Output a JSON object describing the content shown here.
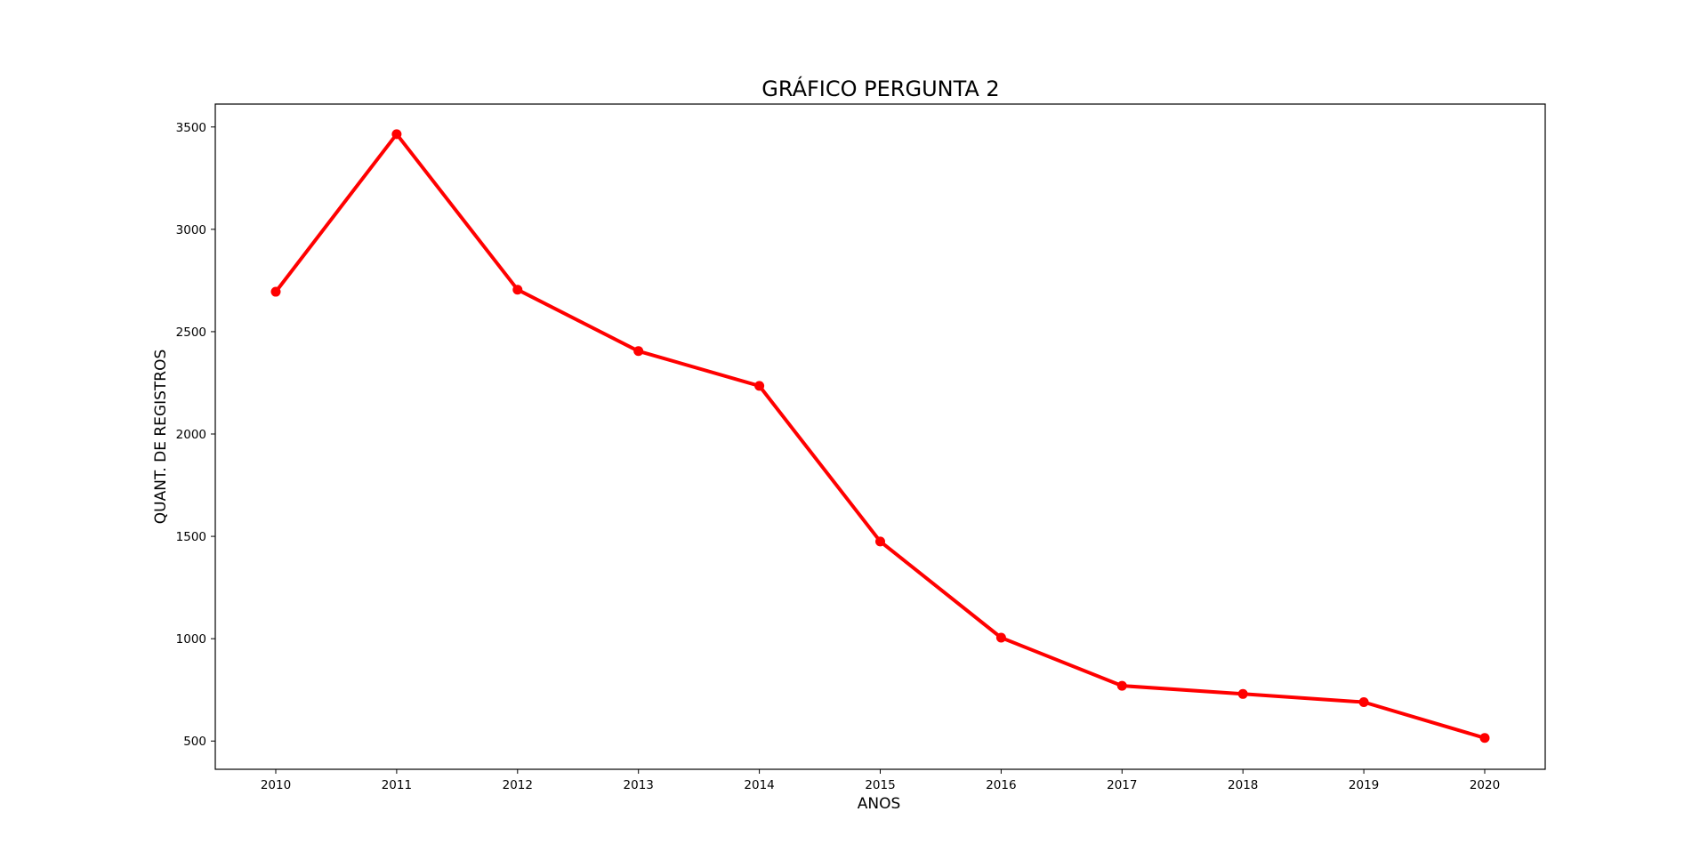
{
  "chart_data": {
    "type": "line",
    "title": "GRÁFICO PERGUNTA 2",
    "xlabel": "ANOS",
    "ylabel": "QUANT. DE REGISTROS",
    "x": [
      "2010",
      "2011",
      "2012",
      "2013",
      "2014",
      "2015",
      "2016",
      "2017",
      "2018",
      "2019",
      "2020"
    ],
    "series": [
      {
        "values": [
          2695,
          3465,
          2705,
          2405,
          2235,
          1475,
          1005,
          770,
          730,
          690,
          515
        ],
        "color": "#ff0000",
        "marker": "circle"
      }
    ],
    "yticks": [
      500,
      1000,
      1500,
      2000,
      2500,
      3000,
      3500
    ],
    "ylim": [
      362,
      3612
    ],
    "grid": false,
    "legend": "none"
  }
}
